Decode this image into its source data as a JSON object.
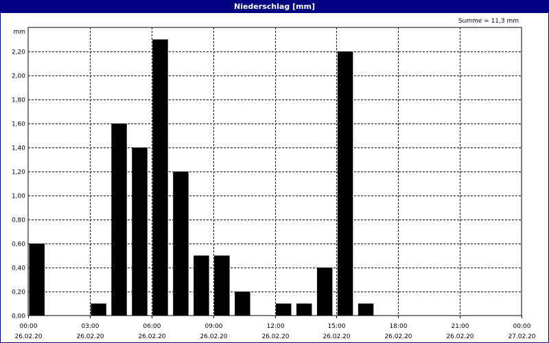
{
  "header": {
    "title": "Niederschlag [mm]",
    "summary": "Summe = 11,3 mm"
  },
  "chart_data": {
    "type": "bar",
    "title": "Niederschlag [mm]",
    "ylabel": "mm",
    "ylim": [
      0,
      2.4
    ],
    "y_ticks": [
      "0,00",
      "0,20",
      "0,40",
      "0,60",
      "0,80",
      "1,00",
      "1,20",
      "1,40",
      "1,60",
      "1,80",
      "2,00",
      "2,20"
    ],
    "x_ticks": [
      {
        "time": "00:00",
        "date": "26.02.20"
      },
      {
        "time": "03:00",
        "date": "26.02.20"
      },
      {
        "time": "06:00",
        "date": "26.02.20"
      },
      {
        "time": "09:00",
        "date": "26.02.20"
      },
      {
        "time": "12:00",
        "date": "26.02.20"
      },
      {
        "time": "15:00",
        "date": "26.02.20"
      },
      {
        "time": "18:00",
        "date": "26.02.20"
      },
      {
        "time": "21:00",
        "date": "26.02.20"
      },
      {
        "time": "00:00",
        "date": "27.02.20"
      }
    ],
    "x_range_hours": [
      0,
      24
    ],
    "bar_width_hours": 1,
    "bars": [
      {
        "hour": 0,
        "value": 0.6
      },
      {
        "hour": 3,
        "value": 0.1
      },
      {
        "hour": 4,
        "value": 1.6
      },
      {
        "hour": 5,
        "value": 1.4
      },
      {
        "hour": 6,
        "value": 2.3
      },
      {
        "hour": 7,
        "value": 1.2
      },
      {
        "hour": 8,
        "value": 0.5
      },
      {
        "hour": 9,
        "value": 0.5
      },
      {
        "hour": 10,
        "value": 0.2
      },
      {
        "hour": 12,
        "value": 0.1
      },
      {
        "hour": 13,
        "value": 0.1
      },
      {
        "hour": 14,
        "value": 0.4
      },
      {
        "hour": 15,
        "value": 2.2
      },
      {
        "hour": 16,
        "value": 0.1
      }
    ],
    "grid": true,
    "colors": {
      "bar": "#000000",
      "title_bg": "#000080",
      "title_fg": "#ffffff"
    }
  }
}
